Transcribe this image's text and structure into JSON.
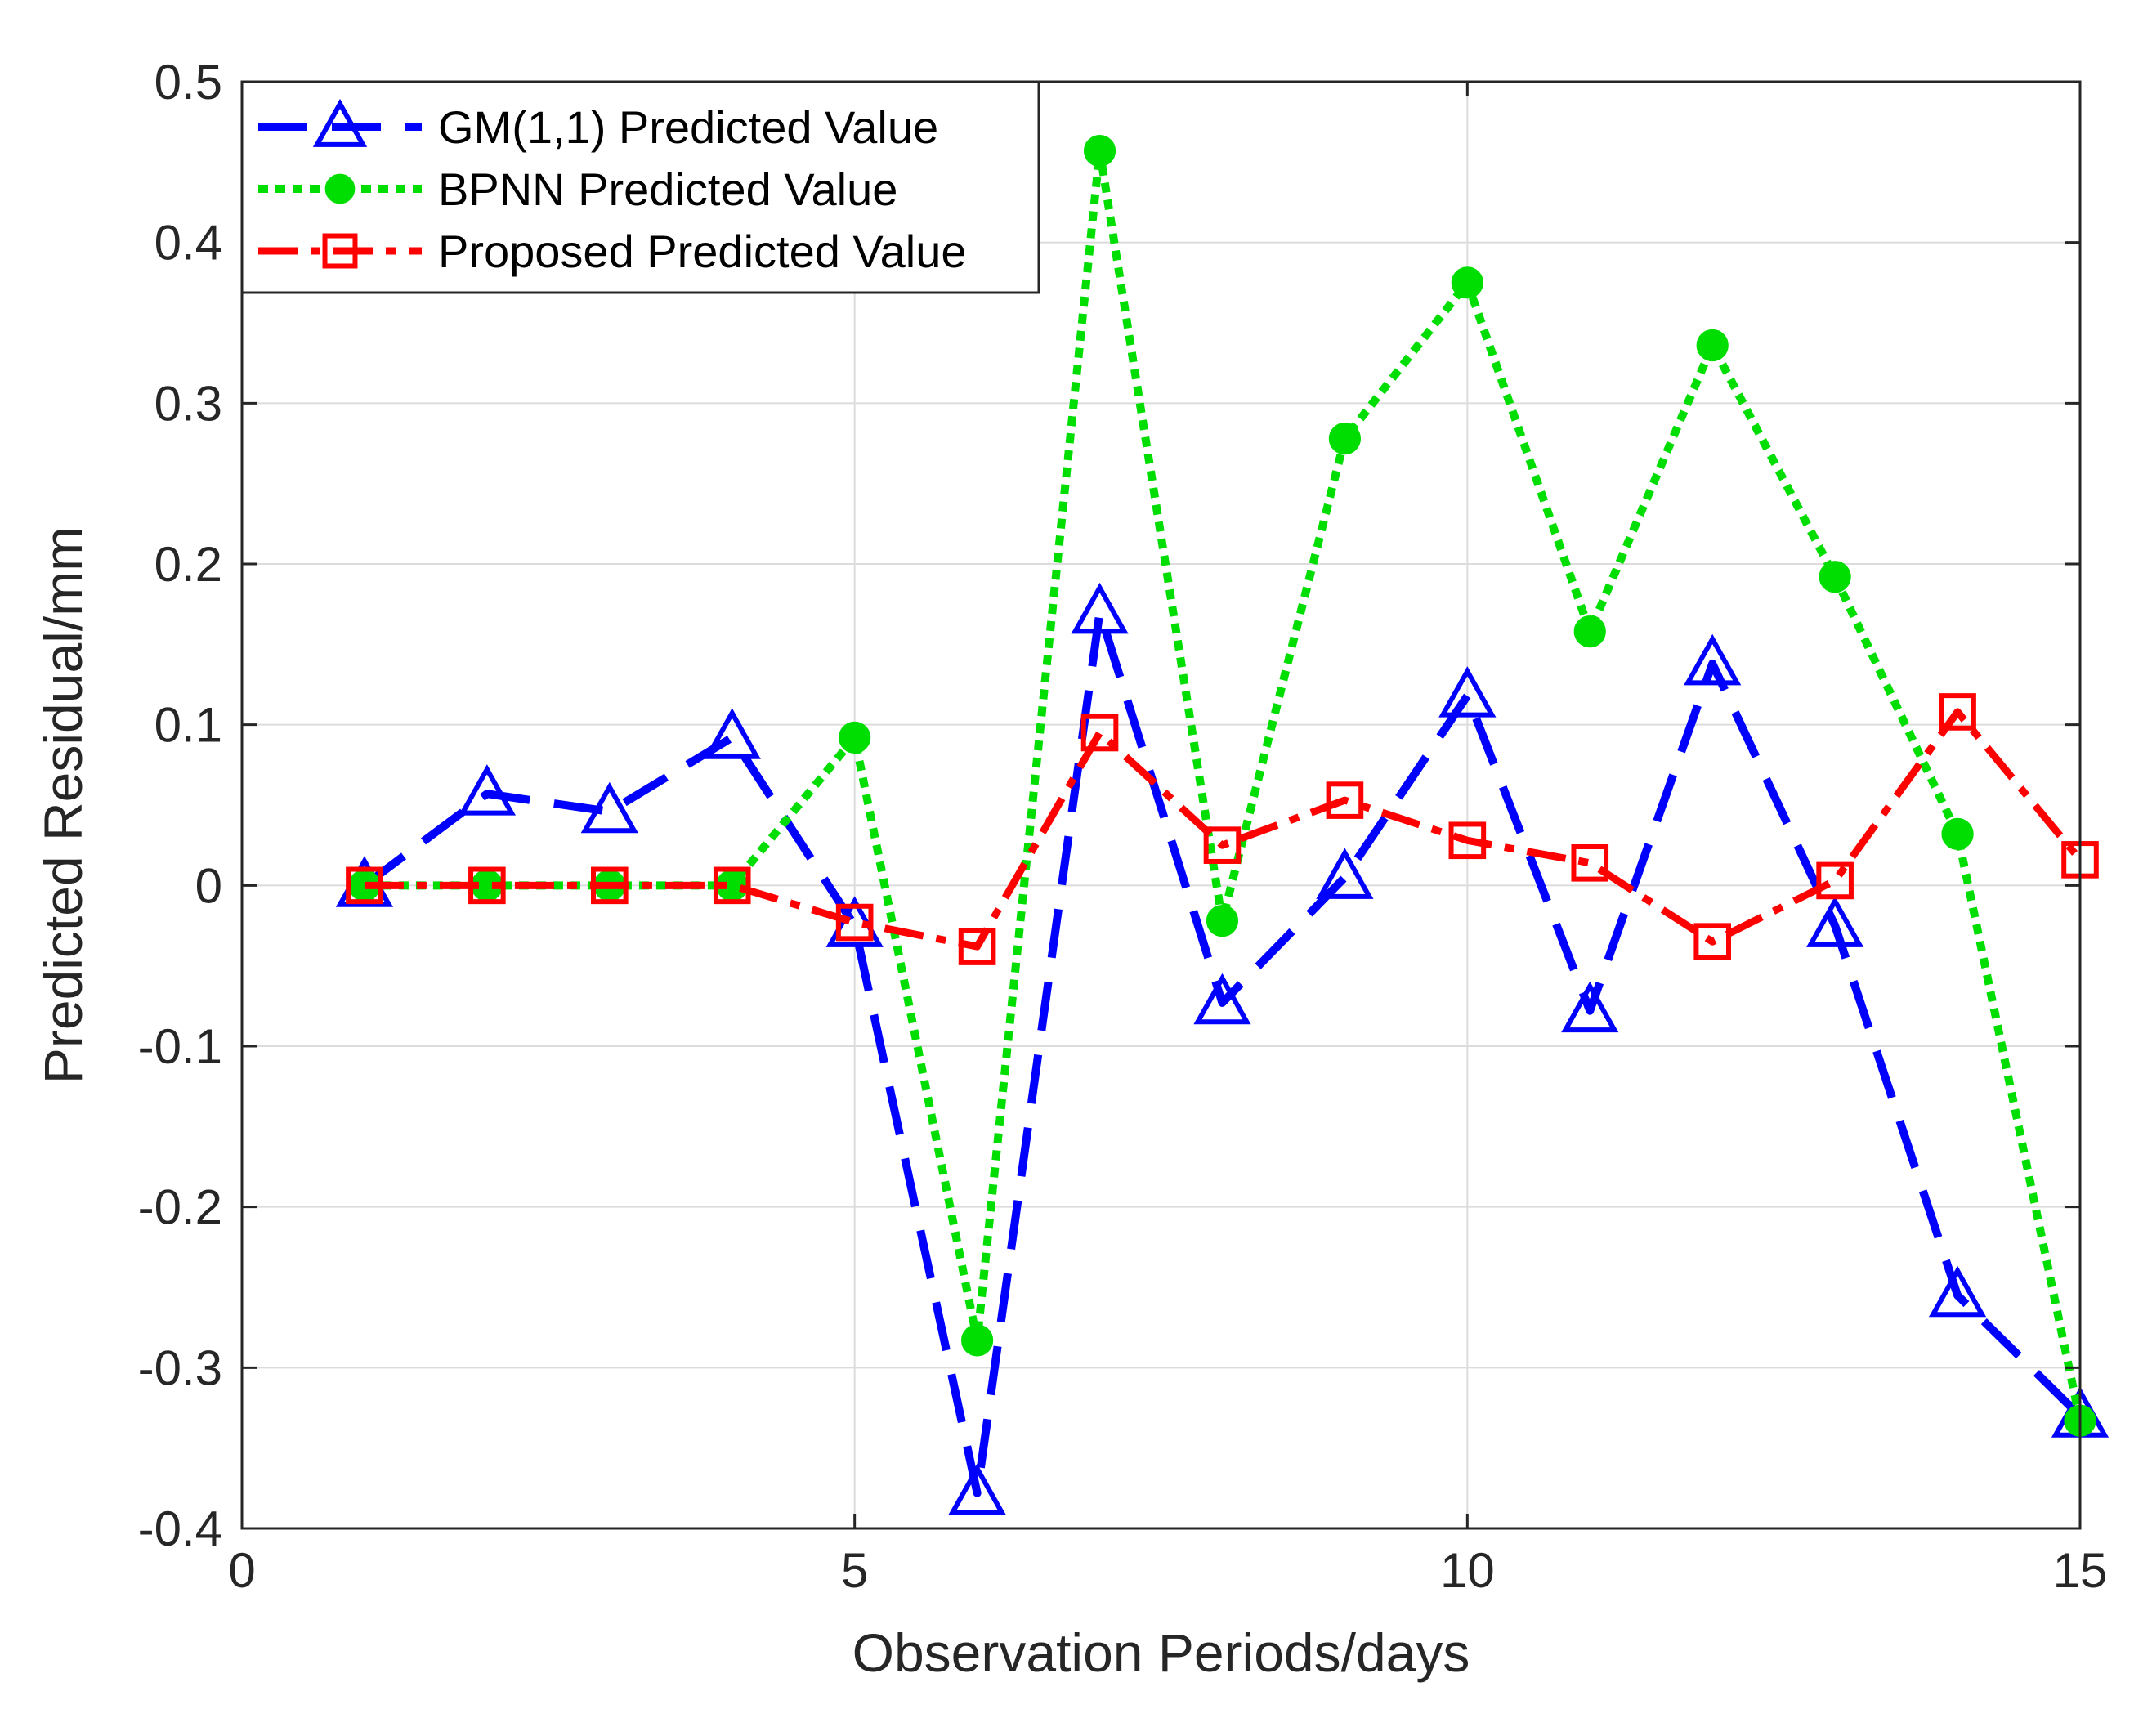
{
  "chart_data": {
    "type": "line",
    "title": "",
    "xlabel": "Observation Periods/days",
    "ylabel": "Predicted Residual/mm",
    "xlim": [
      0,
      15
    ],
    "ylim": [
      -0.4,
      0.5
    ],
    "xticks": [
      0,
      5,
      10,
      15
    ],
    "xtick_labels": [
      "0",
      "5",
      "10",
      "15"
    ],
    "yticks": [
      -0.4,
      -0.3,
      -0.2,
      -0.1,
      0,
      0.1,
      0.2,
      0.3,
      0.4,
      0.5
    ],
    "ytick_labels": [
      "-0.4",
      "-0.3",
      "-0.2",
      "-0.1",
      "0",
      "0.1",
      "0.2",
      "0.3",
      "0.4",
      "0.5"
    ],
    "grid": true,
    "legend_position": "top-left",
    "x": [
      1,
      2,
      3,
      4,
      5,
      6,
      7,
      8,
      9,
      10,
      11,
      12,
      13,
      14,
      15
    ],
    "series": [
      {
        "name": "GM(1,1) Predicted Value",
        "color": "#0000ff",
        "line_style": "dashed",
        "marker": "triangle",
        "values": [
          0.0,
          0.057,
          0.046,
          0.092,
          -0.025,
          -0.378,
          0.17,
          -0.073,
          0.005,
          0.118,
          -0.078,
          0.138,
          -0.025,
          -0.255,
          -0.33
        ]
      },
      {
        "name": "BPNN Predicted Value",
        "color": "#00dd00",
        "line_style": "dotted",
        "marker": "circle",
        "values": [
          0.0,
          0.0,
          0.0,
          0.0,
          0.092,
          -0.283,
          0.457,
          -0.022,
          0.278,
          0.375,
          0.158,
          0.336,
          0.192,
          0.032,
          -0.333
        ]
      },
      {
        "name": "Proposed Predicted Value",
        "color": "#ff0000",
        "line_style": "dashdot",
        "marker": "square",
        "values": [
          0.0,
          0.0,
          0.0,
          0.0,
          -0.023,
          -0.038,
          0.095,
          0.025,
          0.053,
          0.028,
          0.014,
          -0.035,
          0.003,
          0.108,
          0.016
        ]
      }
    ]
  }
}
